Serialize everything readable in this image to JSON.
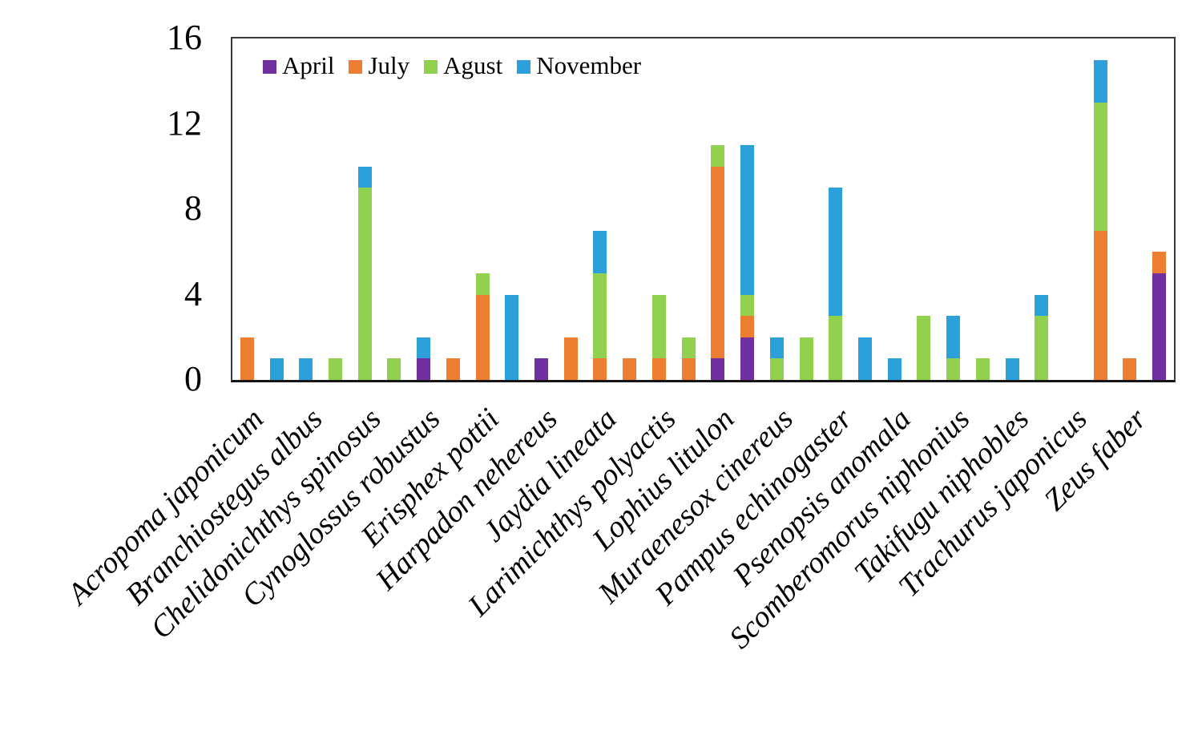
{
  "chart_data": {
    "type": "bar",
    "subtype": "stacked",
    "title": "",
    "xlabel": "",
    "ylabel": "",
    "ylim": [
      0,
      16
    ],
    "yticks": [
      0,
      4,
      8,
      12,
      16
    ],
    "grid": false,
    "bars_per_category": 2,
    "legend": {
      "position": "inside-top-left",
      "entries": [
        "April",
        "July",
        "Agust",
        "November"
      ]
    },
    "colors": {
      "April": "#7030A0",
      "July": "#ED7D31",
      "Agust": "#92D050",
      "November": "#2CA0DA"
    },
    "axis_color": "#3a3a3a",
    "text_color": "#000000",
    "stack_order_bottom_to_top": [
      "April",
      "July",
      "Agust",
      "November"
    ],
    "categories": [
      "Acropoma japonicum",
      "Branchiostegus albus",
      "Chelidonichthys spinosus",
      "Cynoglossus robustus",
      "Erisphex pottii",
      "Harpadon nehereus",
      "Jaydia lineata",
      "Larimichthys polyactis",
      "Lophius litulon",
      "Muraenesox cinereus",
      "Pampus echinogaster",
      "Psenopsis anomala",
      "Scomberomorus niphonius",
      "Takifugu niphobles",
      "Trachurus japonicus",
      "Zeus faber"
    ],
    "values": [
      {
        "category": "Acropoma japonicum",
        "bars": [
          {
            "July": 2
          },
          {
            "November": 1
          }
        ]
      },
      {
        "category": "Branchiostegus albus",
        "bars": [
          {
            "November": 1
          },
          {
            "Agust": 1
          }
        ]
      },
      {
        "category": "Chelidonichthys spinosus",
        "bars": [
          {
            "Agust": 9,
            "November": 1
          },
          {
            "Agust": 1
          }
        ]
      },
      {
        "category": "Cynoglossus robustus",
        "bars": [
          {
            "April": 1,
            "November": 1
          },
          {
            "July": 1
          }
        ]
      },
      {
        "category": "Erisphex pottii",
        "bars": [
          {
            "July": 4,
            "Agust": 1
          },
          {
            "November": 4
          }
        ]
      },
      {
        "category": "Harpadon nehereus",
        "bars": [
          {
            "April": 1
          },
          {
            "July": 2
          }
        ]
      },
      {
        "category": "Jaydia lineata",
        "bars": [
          {
            "July": 1,
            "Agust": 4,
            "November": 2
          },
          {
            "July": 1
          }
        ]
      },
      {
        "category": "Larimichthys polyactis",
        "bars": [
          {
            "July": 1,
            "Agust": 3
          },
          {
            "July": 1,
            "Agust": 1
          }
        ]
      },
      {
        "category": "Lophius litulon",
        "bars": [
          {
            "April": 1,
            "July": 9,
            "Agust": 1
          },
          {
            "April": 2,
            "July": 1,
            "Agust": 1,
            "November": 7
          }
        ]
      },
      {
        "category": "Muraenesox cinereus",
        "bars": [
          {
            "Agust": 1,
            "November": 1
          },
          {
            "Agust": 2
          }
        ]
      },
      {
        "category": "Pampus echinogaster",
        "bars": [
          {
            "Agust": 3,
            "November": 6
          },
          {
            "November": 2
          }
        ]
      },
      {
        "category": "Psenopsis anomala",
        "bars": [
          {
            "November": 1
          },
          {
            "Agust": 3
          }
        ]
      },
      {
        "category": "Scomberomorus niphonius",
        "bars": [
          {
            "Agust": 1,
            "November": 2
          },
          {
            "Agust": 1
          }
        ]
      },
      {
        "category": "Takifugu niphobles",
        "bars": [
          {
            "November": 1
          },
          {
            "Agust": 3,
            "November": 1
          }
        ]
      },
      {
        "category": "Trachurus japonicus",
        "bars": [
          {},
          {
            "July": 7,
            "Agust": 6,
            "November": 2
          }
        ]
      },
      {
        "category": "Zeus faber",
        "bars": [
          {
            "July": 1
          },
          {
            "April": 5,
            "July": 1
          }
        ]
      }
    ]
  }
}
